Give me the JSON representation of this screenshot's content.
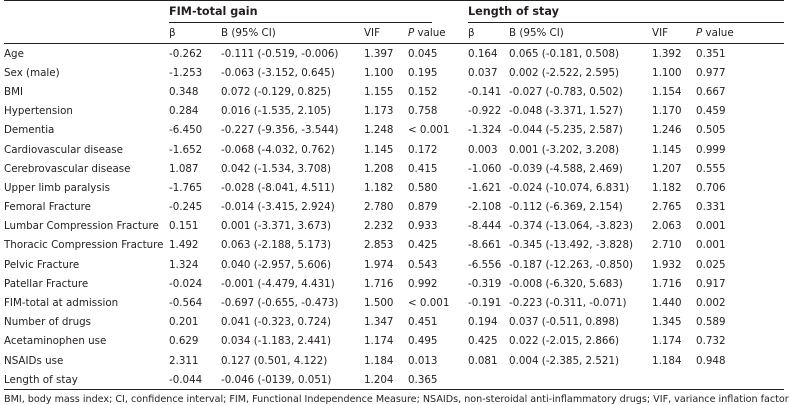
{
  "groups": {
    "fim": "FIM-total gain",
    "los": "Length of stay"
  },
  "headers": {
    "beta": "β",
    "b_ci": "B (95% CI)",
    "vif": "VIF",
    "p_italic": "P",
    "p_rest": " value"
  },
  "rows": [
    {
      "label": "Age",
      "fim": {
        "beta": "-0.262",
        "b": "-0.111 (-0.519, -0.006)",
        "vif": "1.397",
        "p": "0.045"
      },
      "los": {
        "beta": "0.164",
        "b": "0.065 (-0.181, 0.508)",
        "vif": "1.392",
        "p": "0.351"
      }
    },
    {
      "label": "Sex (male)",
      "fim": {
        "beta": "-1.253",
        "b": "-0.063 (-3.152, 0.645)",
        "vif": "1.100",
        "p": "0.195"
      },
      "los": {
        "beta": "0.037",
        "b": "0.002 (-2.522, 2.595)",
        "vif": "1.100",
        "p": "0.977"
      }
    },
    {
      "label": "BMI",
      "fim": {
        "beta": "0.348",
        "b": "0.072 (-0.129, 0.825)",
        "vif": "1.155",
        "p": "0.152"
      },
      "los": {
        "beta": "-0.141",
        "b": "-0.027 (-0.783, 0.502)",
        "vif": "1.154",
        "p": "0.667"
      }
    },
    {
      "label": "Hypertension",
      "fim": {
        "beta": "0.284",
        "b": "0.016 (-1.535, 2.105)",
        "vif": "1.173",
        "p": "0.758"
      },
      "los": {
        "beta": "-0.922",
        "b": "-0.048 (-3.371, 1.527)",
        "vif": "1.170",
        "p": "0.459"
      }
    },
    {
      "label": "Dementia",
      "fim": {
        "beta": "-6.450",
        "b": "-0.227 (-9.356, -3.544)",
        "vif": "1.248",
        "p": "< 0.001"
      },
      "los": {
        "beta": "-1.324",
        "b": "-0.044 (-5.235, 2.587)",
        "vif": "1.246",
        "p": "0.505"
      }
    },
    {
      "label": "Cardiovascular disease",
      "fim": {
        "beta": "-1.652",
        "b": "-0.068 (-4.032, 0.762)",
        "vif": "1.145",
        "p": "0.172"
      },
      "los": {
        "beta": "0.003",
        "b": "0.001 (-3.202, 3.208)",
        "vif": "1.145",
        "p": "0.999"
      }
    },
    {
      "label": "Cerebrovascular disease",
      "fim": {
        "beta": "1.087",
        "b": "0.042 (-1.534, 3.708)",
        "vif": "1.208",
        "p": "0.415"
      },
      "los": {
        "beta": "-1.060",
        "b": "-0.039 (-4.588, 2.469)",
        "vif": "1.207",
        "p": "0.555"
      }
    },
    {
      "label": "Upper limb paralysis",
      "fim": {
        "beta": "-1.765",
        "b": "-0.028 (-8.041, 4.511)",
        "vif": "1.182",
        "p": "0.580"
      },
      "los": {
        "beta": "-1.621",
        "b": "-0.024 (-10.074, 6.831)",
        "vif": "1.182",
        "p": "0.706"
      }
    },
    {
      "label": "Femoral Fracture",
      "fim": {
        "beta": "-0.245",
        "b": "-0.014 (-3.415, 2.924)",
        "vif": "2.780",
        "p": "0.879"
      },
      "los": {
        "beta": "-2.108",
        "b": "-0.112 (-6.369, 2.154)",
        "vif": "2.765",
        "p": "0.331"
      }
    },
    {
      "label": "Lumbar Compression Fracture",
      "fim": {
        "beta": "0.151",
        "b": "0.001 (-3.371, 3.673)",
        "vif": "2.232",
        "p": "0.933"
      },
      "los": {
        "beta": "-8.444",
        "b": "-0.374 (-13.064, -3.823)",
        "vif": "2.063",
        "p": "0.001"
      }
    },
    {
      "label": "Thoracic Compression Fracture",
      "fim": {
        "beta": "1.492",
        "b": "0.063 (-2.188, 5.173)",
        "vif": "2.853",
        "p": "0.425"
      },
      "los": {
        "beta": "-8.661",
        "b": "-0.345 (-13.492, -3.828)",
        "vif": "2.710",
        "p": "0.001"
      }
    },
    {
      "label": "Pelvic Fracture",
      "fim": {
        "beta": "1.324",
        "b": "0.040 (-2.957, 5.606)",
        "vif": "1.974",
        "p": "0.543"
      },
      "los": {
        "beta": "-6.556",
        "b": "-0.187 (-12.263, -0.850)",
        "vif": "1.932",
        "p": "0.025"
      }
    },
    {
      "label": "Patellar Fracture",
      "fim": {
        "beta": "-0.024",
        "b": "-0.001 (-4.479, 4.431)",
        "vif": "1.716",
        "p": "0.992"
      },
      "los": {
        "beta": "-0.319",
        "b": "-0.008 (-6.320, 5.683)",
        "vif": "1.716",
        "p": "0.917"
      }
    },
    {
      "label": "FIM-total at admission",
      "fim": {
        "beta": "-0.564",
        "b": "-0.697 (-0.655, -0.473)",
        "vif": "1.500",
        "p": "< 0.001"
      },
      "los": {
        "beta": "-0.191",
        "b": "-0.223 (-0.311, -0.071)",
        "vif": "1.440",
        "p": "0.002"
      }
    },
    {
      "label": "Number of drugs",
      "fim": {
        "beta": "0.201",
        "b": "0.041 (-0.323, 0.724)",
        "vif": "1.347",
        "p": "0.451"
      },
      "los": {
        "beta": "0.194",
        "b": "0.037 (-0.511, 0.898)",
        "vif": "1.345",
        "p": "0.589"
      }
    },
    {
      "label": "Acetaminophen use",
      "fim": {
        "beta": "0.629",
        "b": "0.034 (-1.183, 2.441)",
        "vif": "1.174",
        "p": "0.495"
      },
      "los": {
        "beta": "0.425",
        "b": "0.022 (-2.015, 2.866)",
        "vif": "1.174",
        "p": "0.732"
      }
    },
    {
      "label": "NSAIDs use",
      "fim": {
        "beta": "2.311",
        "b": "0.127 (0.501, 4.122)",
        "vif": "1.184",
        "p": "0.013"
      },
      "los": {
        "beta": "0.081",
        "b": "0.004 (-2.385, 2.521)",
        "vif": "1.184",
        "p": "0.948"
      }
    },
    {
      "label": "Length of stay",
      "fim": {
        "beta": "-0.044",
        "b": "-0.046 (-0139, 0.051)",
        "vif": "1.204",
        "p": "0.365"
      },
      "los": {
        "beta": "",
        "b": "",
        "vif": "",
        "p": ""
      }
    }
  ],
  "footnote": "BMI, body mass index; CI, confidence interval; FIM, Functional Independence Measure; NSAIDs, non-steroidal anti-inflammatory drugs; VIF, variance inflation factor"
}
